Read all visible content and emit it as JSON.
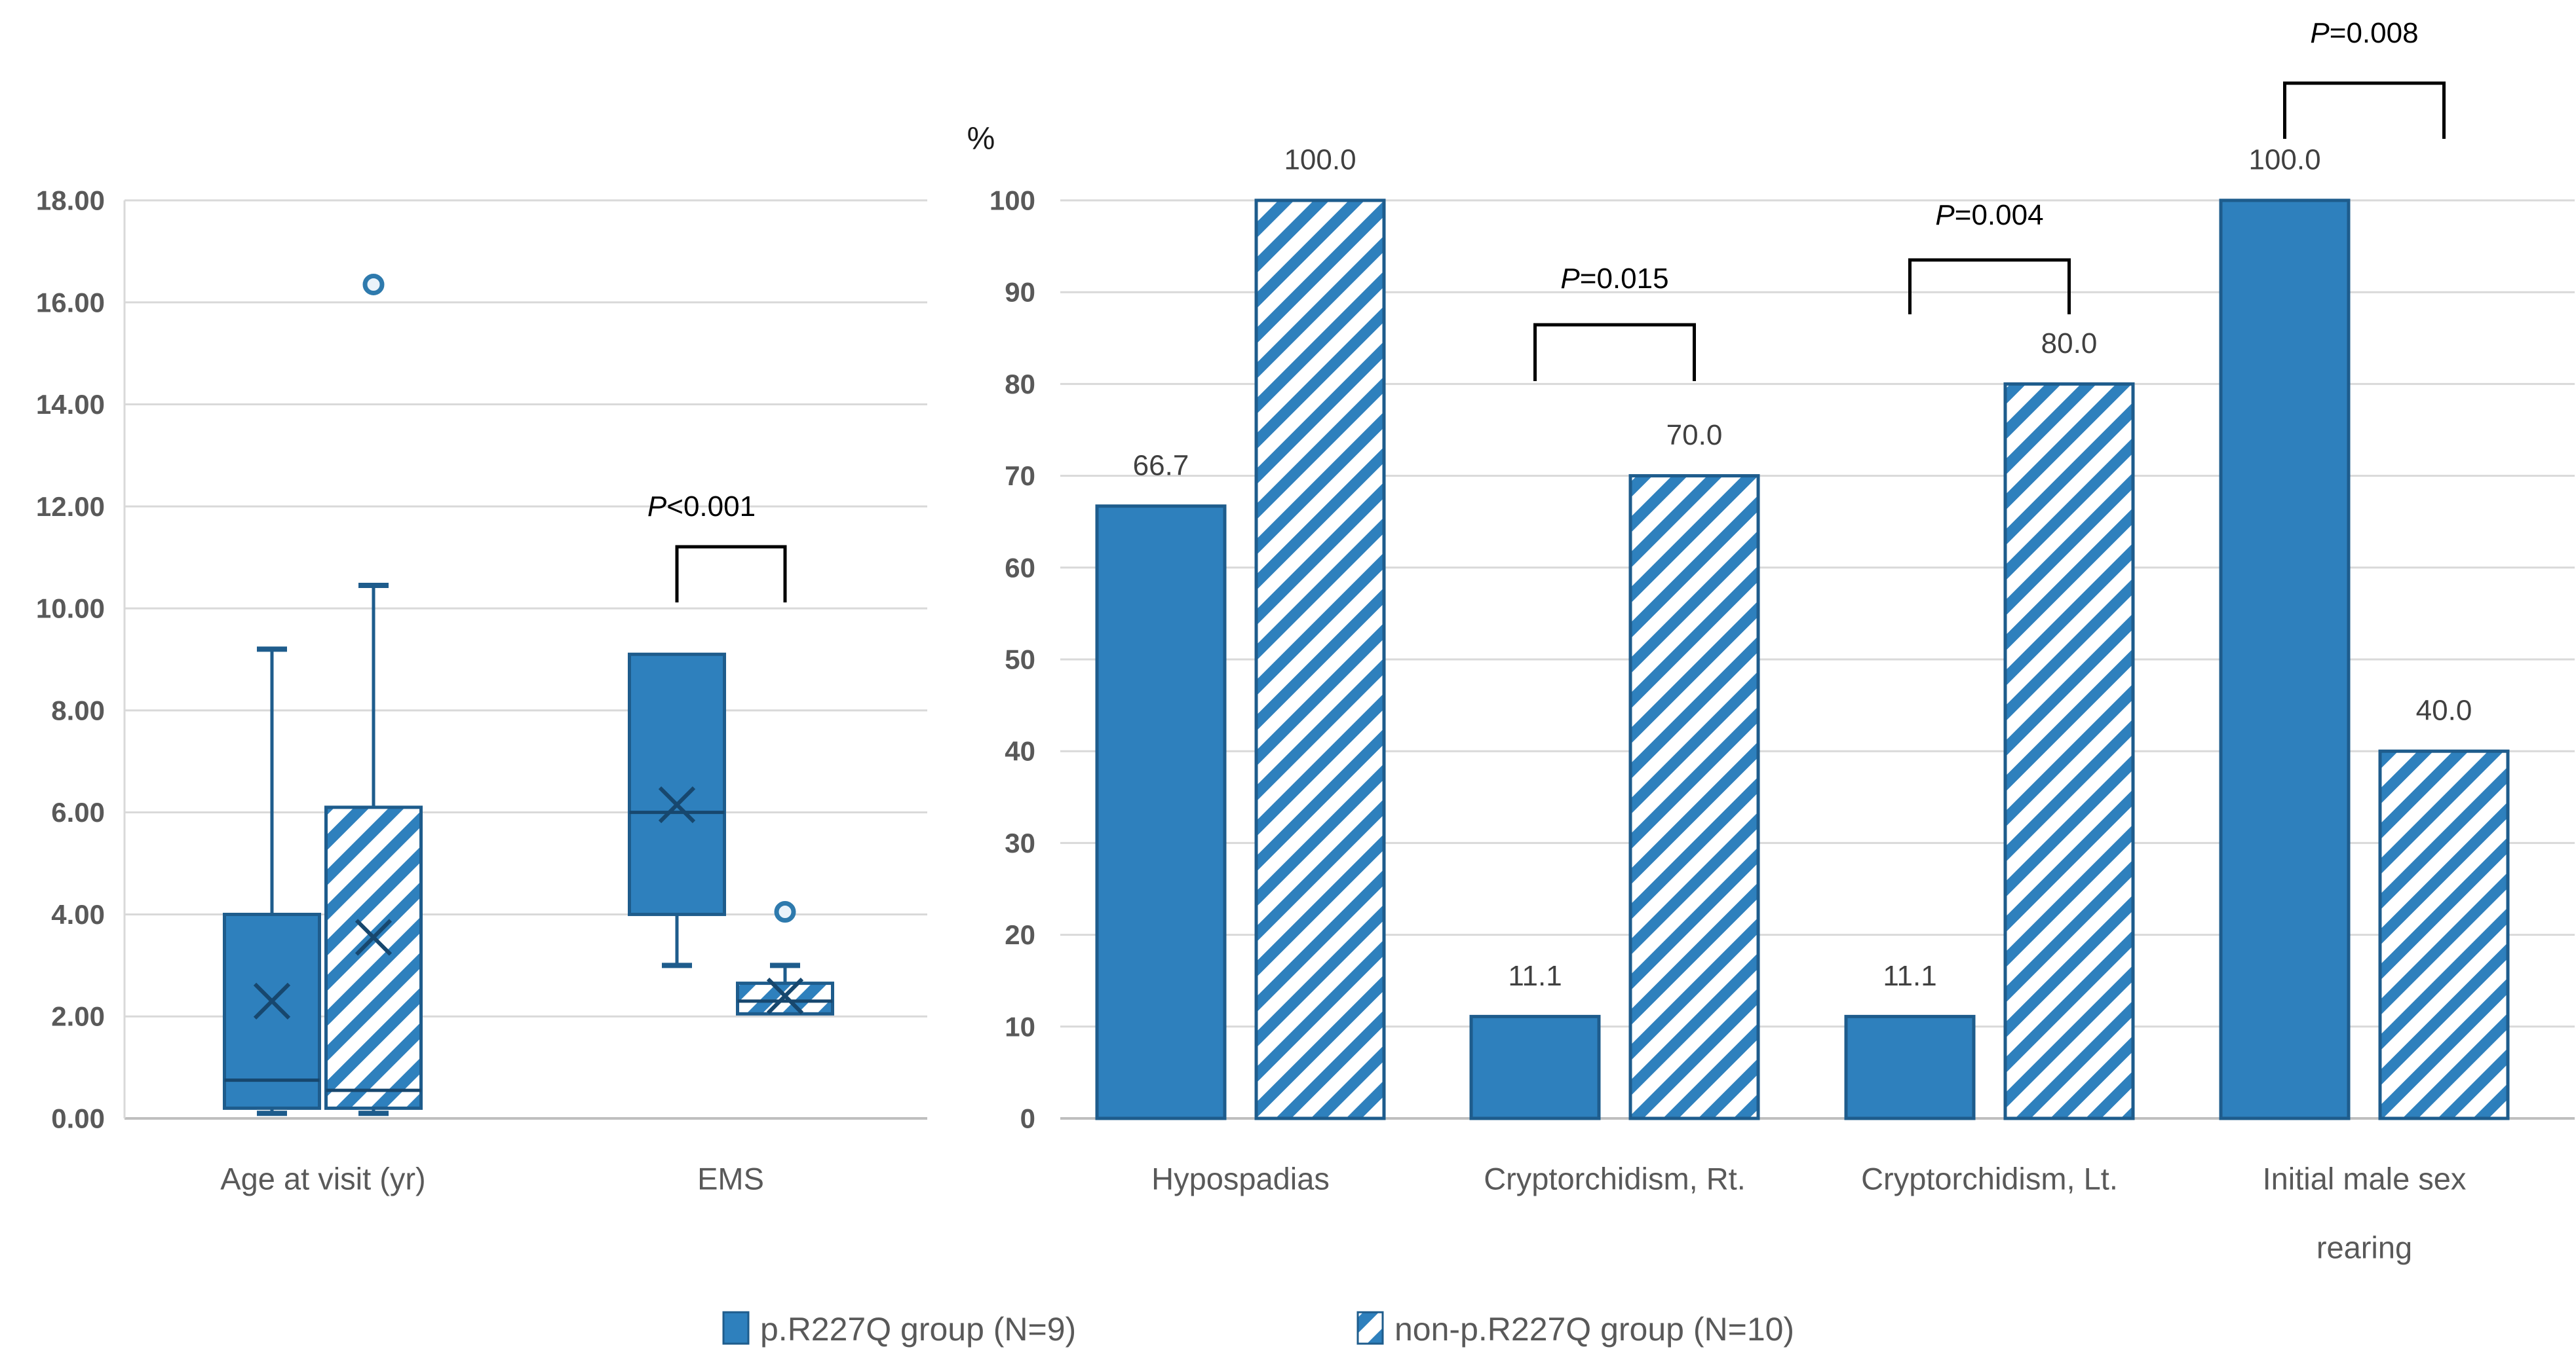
{
  "colors": {
    "solid_fill": "#2E80BD",
    "dark_stroke": "#1E5C8C",
    "median_line": "#17476E",
    "hatch_stripe": "#2E80BD",
    "gridline": "#D9D9D9",
    "axis_line": "#BFBFBF",
    "tick_text": "#595959",
    "value_text": "#404040",
    "category_text": "#595959",
    "annotation_text": "#000000"
  },
  "legend": {
    "items": [
      {
        "label": "p.R227Q group (N=9)",
        "pattern": "solid"
      },
      {
        "label": "non-p.R227Q group (N=10)",
        "pattern": "hatched"
      }
    ]
  },
  "chart_data": [
    {
      "type": "box",
      "title": "",
      "xlabel": "",
      "ylabel": "",
      "ylim": [
        0,
        18
      ],
      "y_ticks": [
        "0.00",
        "2.00",
        "4.00",
        "6.00",
        "8.00",
        "10.00",
        "12.00",
        "14.00",
        "16.00",
        "18.00"
      ],
      "grid": true,
      "categories": [
        "Age at visit (yr)",
        "EMS"
      ],
      "series": [
        {
          "name": "p.R227Q group (N=9)",
          "pattern": "solid",
          "boxes": [
            {
              "category": "Age at visit (yr)",
              "whisker_low": 0.1,
              "q1": 0.2,
              "median": 0.75,
              "q3": 4.0,
              "whisker_high": 9.2,
              "mean": 2.3,
              "outliers": []
            },
            {
              "category": "EMS",
              "whisker_low": 3.0,
              "q1": 4.0,
              "median": 6.0,
              "q3": 9.1,
              "whisker_high": null,
              "mean": 6.15,
              "outliers": []
            }
          ]
        },
        {
          "name": "non-p.R227Q group (N=10)",
          "pattern": "hatched",
          "boxes": [
            {
              "category": "Age at visit (yr)",
              "whisker_low": 0.1,
              "q1": 0.2,
              "median": 0.55,
              "q3": 6.1,
              "whisker_high": 10.45,
              "mean": 3.55,
              "outliers": [
                16.35
              ]
            },
            {
              "category": "EMS",
              "whisker_low": null,
              "q1": 2.05,
              "median": 2.3,
              "q3": 2.65,
              "whisker_high": 3.0,
              "mean": 2.4,
              "outliers": [
                4.05
              ]
            }
          ]
        }
      ],
      "significance": [
        {
          "category": "EMS",
          "category_index": 1,
          "label": "P<0.001"
        }
      ]
    },
    {
      "type": "bar",
      "title": "",
      "y_axis_label": "%",
      "ylim": [
        0,
        100
      ],
      "y_ticks": [
        "0",
        "10",
        "20",
        "30",
        "40",
        "50",
        "60",
        "70",
        "80",
        "90",
        "100"
      ],
      "grid": true,
      "categories": [
        [
          "Hypospadias"
        ],
        [
          "Cryptorchidism, Rt."
        ],
        [
          "Cryptorchidism, Lt."
        ],
        [
          "Initial male sex",
          "rearing"
        ]
      ],
      "series": [
        {
          "name": "p.R227Q group (N=9)",
          "pattern": "solid",
          "values": [
            66.7,
            11.1,
            11.1,
            100.0
          ],
          "labels": [
            "66.7",
            "11.1",
            "11.1",
            "100.0"
          ]
        },
        {
          "name": "non-p.R227Q group (N=10)",
          "pattern": "hatched",
          "values": [
            100.0,
            70.0,
            80.0,
            40.0
          ],
          "labels": [
            "100.0",
            "70.0",
            "80.0",
            "40.0"
          ]
        }
      ],
      "significance": [
        {
          "category": "Cryptorchidism, Rt.",
          "category_index": 1,
          "label": "P=0.015"
        },
        {
          "category": "Cryptorchidism, Lt.",
          "category_index": 2,
          "label": "P=0.004"
        },
        {
          "category": "Initial male sex rearing",
          "category_index": 3,
          "label": "P=0.008"
        }
      ]
    }
  ]
}
